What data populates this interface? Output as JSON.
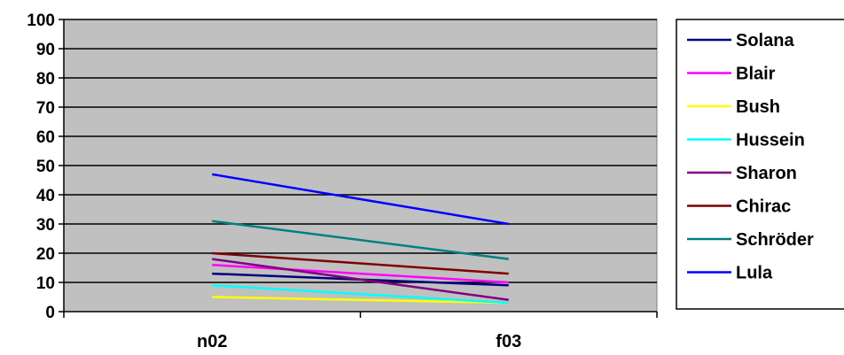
{
  "chart_data": {
    "type": "line",
    "categories": [
      "n02",
      "f03"
    ],
    "ylim": [
      0,
      100
    ],
    "yticks": [
      0,
      10,
      20,
      30,
      40,
      50,
      60,
      70,
      80,
      90,
      100
    ],
    "grid": true,
    "plot_background": "#c0c0c0",
    "legend_position": "right",
    "series": [
      {
        "name": "Solana",
        "color": "#000080",
        "values": [
          13,
          9
        ]
      },
      {
        "name": "Blair",
        "color": "#ff00ff",
        "values": [
          16,
          10
        ]
      },
      {
        "name": "Bush",
        "color": "#ffff00",
        "values": [
          5,
          3
        ]
      },
      {
        "name": "Hussein",
        "color": "#00ffff",
        "values": [
          9,
          3
        ]
      },
      {
        "name": "Sharon",
        "color": "#800080",
        "values": [
          18,
          4
        ]
      },
      {
        "name": "Chirac",
        "color": "#800000",
        "values": [
          20,
          13
        ]
      },
      {
        "name": "Schröder",
        "color": "#008080",
        "values": [
          31,
          18
        ]
      },
      {
        "name": "Lula",
        "color": "#0000ff",
        "values": [
          47,
          30
        ]
      }
    ]
  }
}
